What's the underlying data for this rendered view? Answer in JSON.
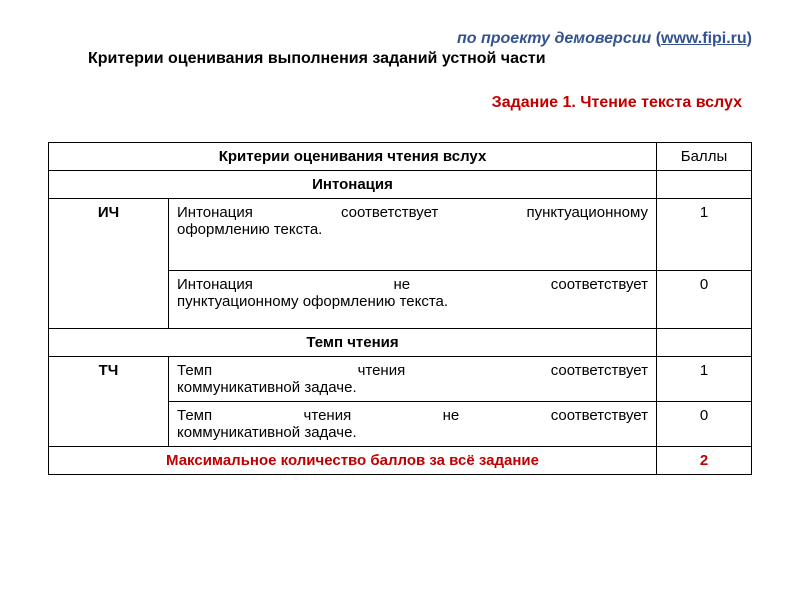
{
  "header": {
    "prefix": "по проекту демоверсии",
    "link_text": "www.fipi.ru",
    "subtitle": "Критерии оценивания выполнения заданий устной части"
  },
  "task_title": "Задание 1. Чтение текста вслух",
  "table": {
    "header_criteria": "Критерии оценивания чтения вслух",
    "header_score": "Баллы",
    "section1": "Интонация",
    "row1_code": "ИЧ",
    "row1_desc_line1": "Интонация соответствует пунктуационному",
    "row1_desc_line2": "оформлению текста.",
    "row1_score": "1",
    "row2_desc_line1_w1": "Интонация",
    "row2_desc_line1_w2": "не",
    "row2_desc_line1_w3": "соответствует",
    "row2_desc_line2": "пунктуационному оформлению текста.",
    "row2_score": "0",
    "section2": "Темп чтения",
    "row3_code": "ТЧ",
    "row3_desc_line1_w1": "Темп",
    "row3_desc_line1_w2": "чтения",
    "row3_desc_line1_w3": "соответствует",
    "row3_desc_line2": "коммуникативной задаче.",
    "row3_score": "1",
    "row4_desc_line1_w1": "Темп",
    "row4_desc_line1_w2": "чтения",
    "row4_desc_line1_w3": "не",
    "row4_desc_line1_w4": "соответствует",
    "row4_desc_line2": "коммуникативной задаче.",
    "row4_score": "0",
    "total_label": "Максимальное количество баллов за всё задание",
    "total_score": "2"
  },
  "colors": {
    "accent_blue": "#34538f",
    "accent_red": "#c00000",
    "border": "#000000",
    "bg": "#ffffff"
  }
}
